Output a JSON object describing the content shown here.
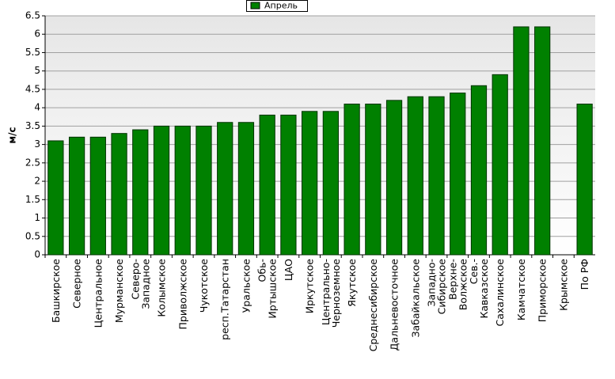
{
  "chart_data": {
    "type": "bar",
    "y_label": "м/с",
    "categories": [
      "Башкирское",
      "Северное",
      "Центральное",
      "Мурманское",
      "Северо-\nЗападное",
      "Колымское",
      "Приволжское",
      "Чукотское",
      "респ.Татарстан",
      "Уральское",
      "Обь-\nИртышское",
      "ЦАО",
      "Иркутское",
      "Центрально-\nЧерноземное",
      "Якутское",
      "Среднесибирское",
      "Дальневосточное",
      "Забайкальское",
      "Западно-\nСибирское",
      "Верхне-\nВолжское",
      "Сев.-\nКавказское",
      "Сахалинское",
      "Камчатское",
      "Приморское",
      "Крымское",
      "По РФ"
    ],
    "series": [
      {
        "name": "Апрель",
        "color": "#008000",
        "values": [
          3.1,
          3.2,
          3.2,
          3.3,
          3.4,
          3.5,
          3.5,
          3.5,
          3.6,
          3.6,
          3.8,
          3.8,
          3.9,
          3.9,
          4.1,
          4.1,
          4.2,
          4.3,
          4.3,
          4.4,
          4.6,
          4.9,
          6.2,
          6.2,
          null,
          4.1
        ]
      }
    ],
    "ylim": [
      0,
      6.5
    ],
    "yticks": [
      0,
      0.5,
      1,
      1.5,
      2,
      2.5,
      3,
      3.5,
      4,
      4.5,
      5,
      5.5,
      6,
      6.5
    ],
    "grid": true,
    "legend": "top"
  }
}
